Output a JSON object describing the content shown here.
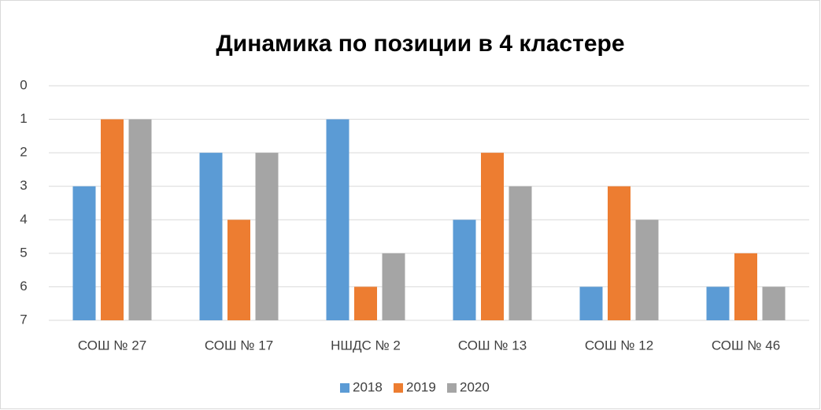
{
  "chart_data": {
    "type": "bar",
    "title": "Динамика по позиции в 4 кластере",
    "categories": [
      "СОШ № 27",
      "СОШ № 17",
      "НШДС № 2",
      "СОШ № 13",
      "СОШ № 12",
      "СОШ № 46"
    ],
    "series": [
      {
        "name": "2018",
        "color": "#5b9bd5",
        "values": [
          3,
          2,
          1,
          4,
          6,
          6
        ]
      },
      {
        "name": "2019",
        "color": "#ed7d31",
        "values": [
          1,
          4,
          6,
          2,
          3,
          5
        ]
      },
      {
        "name": "2020",
        "color": "#a5a5a5",
        "values": [
          1,
          2,
          5,
          3,
          4,
          6
        ]
      }
    ],
    "ylim": [
      7,
      0
    ],
    "yticks": [
      0,
      1,
      2,
      3,
      4,
      5,
      6,
      7
    ],
    "grid": true,
    "legend": "bottom"
  }
}
